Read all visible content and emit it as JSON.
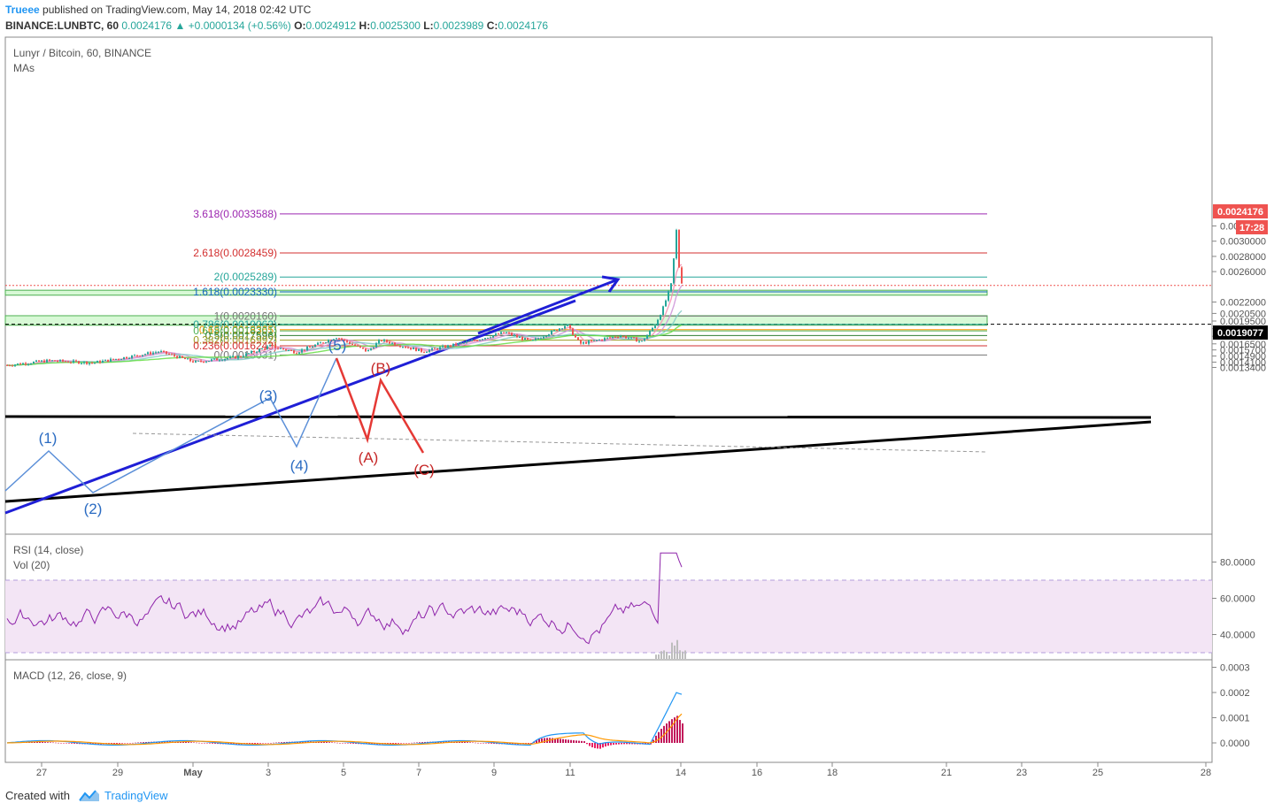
{
  "header": {
    "author": "Trueee",
    "published": "published on TradingView.com, May 14, 2018 02:42 UTC",
    "symbol_line": "BINANCE:LUNBTC, 60",
    "last": "0.0024176",
    "change_arrow": "▲",
    "change": "+0.0000134 (+0.56%)",
    "o_label": "O:",
    "o": "0.0024912",
    "h_label": "H:",
    "h": "0.0025300",
    "l_label": "L:",
    "l": "0.0023989",
    "c_label": "C:",
    "c": "0.0024176"
  },
  "main_pane": {
    "title": "Lunyr / Bitcoin, 60, BINANCE",
    "subtitle": "MAs"
  },
  "rsi_pane": {
    "title": "RSI (14, close)",
    "subtitle": "Vol (20)"
  },
  "macd_pane": {
    "title": "MACD (12, 26, close, 9)"
  },
  "price_badge": {
    "value": "0.0024176",
    "timer": "17:28"
  },
  "level_badge": {
    "value": "0.0019077"
  },
  "footer": {
    "created": "Created with",
    "brand": "TradingView"
  },
  "colors": {
    "up": "#26a69a",
    "down": "#ef5350",
    "rsi_line": "#8e24aa",
    "rsi_band": "#f3e5f5",
    "macd": "#2196f3",
    "signal": "#ff9800",
    "zone": "#c8f7c5",
    "zone_border": "#4caf50"
  },
  "chart_data": {
    "type": "candlestick",
    "price_axis": {
      "ticks": [
        "0.0032000",
        "0.0030000",
        "0.0028000",
        "0.0026000",
        "0.0022000",
        "0.0020500",
        "0.0019500",
        "0.0018500",
        "0.0017500",
        "0.0016500",
        "0.0015700",
        "0.0014900",
        "0.0014100",
        "0.0013400"
      ]
    },
    "x_axis": {
      "ticks": [
        "27",
        "29",
        "May",
        "3",
        "5",
        "7",
        "9",
        "11",
        "14",
        "16",
        "18",
        "21",
        "23",
        "25",
        "28"
      ]
    },
    "fib_levels": [
      {
        "label": "3.618(0.0033588)",
        "value": 0.0033588,
        "color": "#9c27b0"
      },
      {
        "label": "2.618(0.0028459)",
        "value": 0.0028459,
        "color": "#d32f2f"
      },
      {
        "label": "2(0.0025289)",
        "value": 0.0025289,
        "color": "#26a69a"
      },
      {
        "label": "1.618(0.0023330)",
        "value": 0.002333,
        "color": "#1565c0"
      },
      {
        "label": "1(0.0020160)",
        "value": 0.002016,
        "color": "#757575"
      },
      {
        "label": "0.786(0.0019063)",
        "value": 0.0019063,
        "color": "#26a69a"
      },
      {
        "label": "0.65(0.0018365)",
        "value": 0.0018365,
        "color": "#ff9800"
      },
      {
        "label": "0.618(0.0018201)",
        "value": 0.0018201,
        "color": "#4caf50"
      },
      {
        "label": "0.5(0.0017596)",
        "value": 0.0017596,
        "color": "#2e7d32"
      },
      {
        "label": "0.382(0.0016992)",
        "value": 0.0016992,
        "color": "#9e9d24"
      },
      {
        "label": "0.236(0.0016243)",
        "value": 0.0016243,
        "color": "#d32f2f"
      },
      {
        "label": "0(0.0015031)",
        "value": 0.0015031,
        "color": "#757575"
      }
    ],
    "wave_labels": [
      "(1)",
      "(2)",
      "(3)",
      "(4)",
      "(5)",
      "(A)",
      "(B)",
      "(C)"
    ],
    "rsi_axis": {
      "ticks": [
        "80.0000",
        "60.0000",
        "40.0000"
      ],
      "band": [
        30,
        70
      ]
    },
    "macd_axis": {
      "ticks": [
        "0.0003",
        "0.0002",
        "0.0001",
        "0.0000"
      ]
    }
  }
}
